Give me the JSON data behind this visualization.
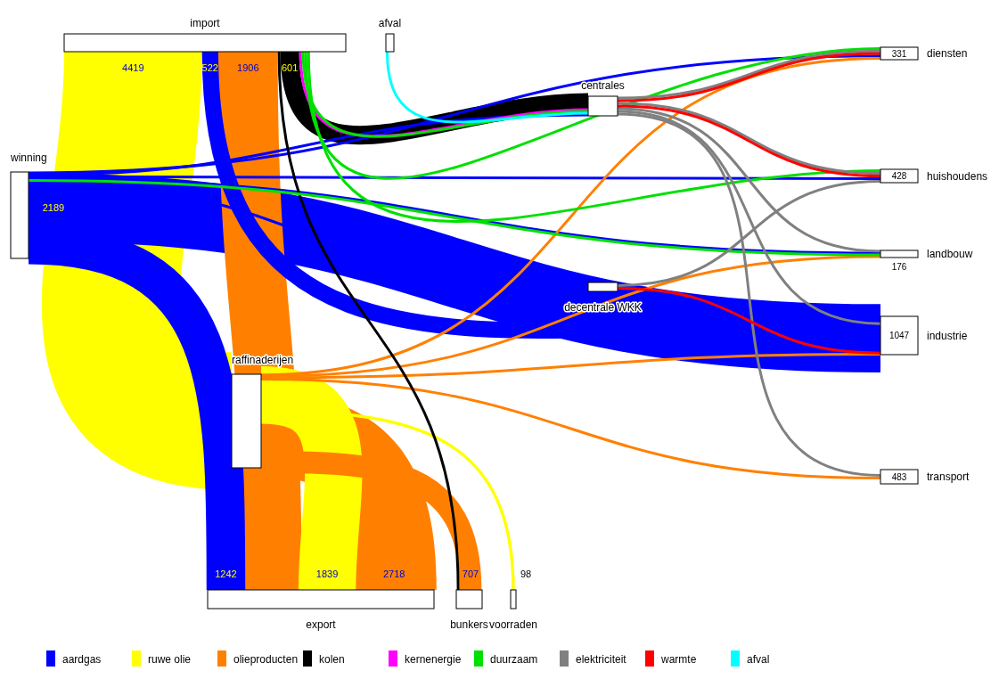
{
  "chart_data": {
    "type": "other",
    "legend": "bottom",
    "data_labels": true,
    "categories": [
      "import",
      "afval",
      "winning",
      "raffinaderijen",
      "centrales",
      "decentrale WKK",
      "diensten",
      "huishoudens",
      "landbouw",
      "industrie",
      "transport",
      "export",
      "bunkers",
      "voorraden"
    ],
    "values": [
      null,
      null,
      null,
      null,
      null,
      null,
      331,
      428,
      176,
      1047,
      483,
      null,
      null,
      null
    ],
    "series": [
      {
        "name": "aardgas",
        "color": "#0000ff",
        "values": [
          522,
          null,
          2189,
          null,
          null,
          null,
          null,
          null,
          null,
          null,
          null,
          1242,
          null,
          null
        ]
      },
      {
        "name": "ruwe olie",
        "color": "#ffff00",
        "values": [
          4419,
          null,
          null,
          null,
          null,
          null,
          null,
          null,
          null,
          null,
          null,
          1839,
          null,
          98
        ]
      },
      {
        "name": "olieproducten",
        "color": "#ff8000",
        "values": [
          1906,
          null,
          null,
          null,
          null,
          null,
          null,
          null,
          null,
          null,
          null,
          2718,
          707,
          null
        ]
      },
      {
        "name": "kolen",
        "color": "#000000",
        "values": [
          601,
          null,
          null,
          null,
          null,
          null,
          null,
          null,
          null,
          null,
          null,
          null,
          null,
          null
        ]
      },
      {
        "name": "kernenergie",
        "color": "#ff00ff",
        "values": [
          null,
          null,
          null,
          null,
          null,
          null,
          null,
          null,
          null,
          null,
          null,
          null,
          null,
          null
        ]
      },
      {
        "name": "duurzaam",
        "color": "#00e000",
        "values": [
          null,
          null,
          null,
          null,
          null,
          null,
          null,
          null,
          null,
          null,
          null,
          null,
          null,
          null
        ]
      },
      {
        "name": "elektriciteit",
        "color": "#808080",
        "values": [
          null,
          null,
          null,
          null,
          null,
          null,
          null,
          null,
          null,
          null,
          null,
          null,
          null,
          null
        ]
      },
      {
        "name": "warmte",
        "color": "#ff0000",
        "values": [
          null,
          null,
          null,
          null,
          null,
          null,
          null,
          null,
          null,
          null,
          null,
          null,
          null,
          null
        ]
      },
      {
        "name": "afval",
        "color": "#00ffff",
        "values": [
          null,
          null,
          null,
          null,
          null,
          null,
          null,
          null,
          null,
          null,
          null,
          null,
          null,
          null
        ]
      }
    ]
  }
}
